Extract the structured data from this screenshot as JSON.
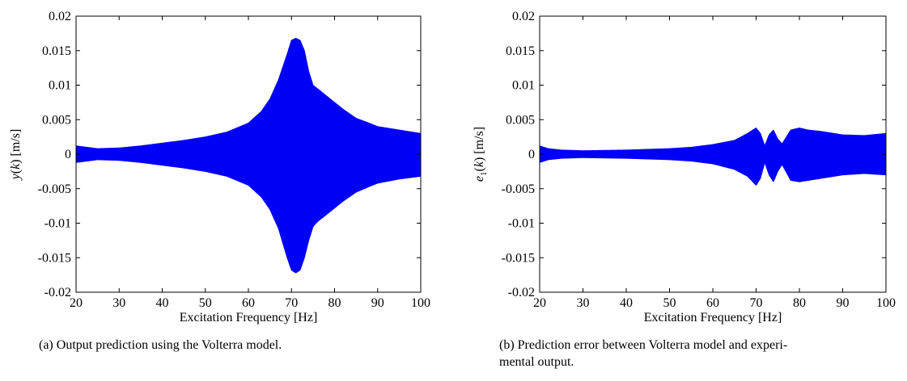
{
  "chart_data": [
    {
      "type": "area",
      "panel": "(a)",
      "xlabel": "Excitation Frequency [Hz]",
      "ylabel_parts": {
        "var": "y",
        "rest": "(",
        "k": "k",
        "close": ") [m/s]"
      },
      "ylabel": "y(k) [m/s]",
      "xlim": [
        20,
        100
      ],
      "ylim": [
        -0.02,
        0.02
      ],
      "xticks": [
        20,
        30,
        40,
        50,
        60,
        70,
        80,
        90,
        100
      ],
      "yticks": [
        -0.02,
        -0.015,
        -0.01,
        -0.005,
        0,
        0.005,
        0.01,
        0.015,
        0.02
      ],
      "ytick_labels": [
        "-0.02",
        "-0.015",
        "-0.01",
        "-0.005",
        "0",
        "0.005",
        "0.01",
        "0.015",
        "0.02"
      ],
      "grid": false,
      "color": "#0000ff",
      "series": [
        {
          "envelope_upper": {
            "x": [
              20,
              25,
              30,
              35,
              40,
              45,
              50,
              55,
              60,
              63,
              65,
              67,
              69,
              70,
              71,
              72,
              73,
              74,
              75,
              76,
              78,
              80,
              82,
              85,
              88,
              90,
              95,
              100
            ],
            "y": [
              0.0012,
              0.0008,
              0.0009,
              0.0012,
              0.0016,
              0.002,
              0.0025,
              0.0032,
              0.0045,
              0.0062,
              0.008,
              0.0108,
              0.0145,
              0.0165,
              0.0168,
              0.0165,
              0.015,
              0.012,
              0.01,
              0.0095,
              0.0085,
              0.0075,
              0.0065,
              0.0052,
              0.0045,
              0.004,
              0.0035,
              0.003
            ]
          },
          "envelope_lower": {
            "x": [
              20,
              25,
              30,
              35,
              40,
              45,
              50,
              55,
              60,
              63,
              65,
              67,
              69,
              70,
              71,
              72,
              73,
              74,
              75,
              76,
              78,
              80,
              82,
              85,
              88,
              90,
              95,
              100
            ],
            "y": [
              -0.0012,
              -0.0008,
              -0.0009,
              -0.0012,
              -0.0016,
              -0.002,
              -0.0025,
              -0.0032,
              -0.0045,
              -0.0062,
              -0.008,
              -0.0108,
              -0.015,
              -0.0168,
              -0.0172,
              -0.0168,
              -0.015,
              -0.0125,
              -0.0105,
              -0.0098,
              -0.0088,
              -0.0078,
              -0.0068,
              -0.0055,
              -0.0047,
              -0.0042,
              -0.0036,
              -0.0032
            ]
          }
        }
      ],
      "caption": "(a) Output prediction using the Volterra model."
    },
    {
      "type": "area",
      "panel": "(b)",
      "xlabel": "Excitation Frequency [Hz]",
      "ylabel_parts": {
        "var": "e",
        "sub": "1",
        "rest": "(",
        "k": "k",
        "close": ") [m/s]"
      },
      "ylabel": "e1(k) [m/s]",
      "xlim": [
        20,
        100
      ],
      "ylim": [
        -0.02,
        0.02
      ],
      "xticks": [
        20,
        30,
        40,
        50,
        60,
        70,
        80,
        90,
        100
      ],
      "yticks": [
        -0.02,
        -0.015,
        -0.01,
        -0.005,
        0,
        0.005,
        0.01,
        0.015,
        0.02
      ],
      "ytick_labels": [
        "-0.02",
        "-0.015",
        "-0.01",
        "-0.005",
        "0",
        "0.005",
        "0.01",
        "0.015",
        "0.02"
      ],
      "grid": false,
      "color": "#0000ff",
      "series": [
        {
          "envelope_upper": {
            "x": [
              20,
              22,
              25,
              30,
              40,
              50,
              55,
              60,
              65,
              68,
              70,
              71,
              72,
              73,
              74,
              75,
              76,
              78,
              80,
              82,
              85,
              88,
              90,
              95,
              100
            ],
            "y": [
              0.0012,
              0.0008,
              0.0006,
              0.0005,
              0.0006,
              0.0008,
              0.001,
              0.0014,
              0.002,
              0.003,
              0.0038,
              0.003,
              0.0012,
              0.0028,
              0.0035,
              0.0022,
              0.0015,
              0.0035,
              0.0038,
              0.0035,
              0.0033,
              0.003,
              0.0028,
              0.0027,
              0.003
            ]
          },
          "envelope_lower": {
            "x": [
              20,
              22,
              25,
              30,
              40,
              50,
              55,
              60,
              65,
              68,
              70,
              71,
              72,
              73,
              74,
              75,
              76,
              78,
              80,
              82,
              85,
              88,
              90,
              95,
              100
            ],
            "y": [
              -0.0012,
              -0.0008,
              -0.0006,
              -0.0005,
              -0.0006,
              -0.0008,
              -0.001,
              -0.0014,
              -0.0022,
              -0.0032,
              -0.0045,
              -0.0035,
              -0.0012,
              -0.003,
              -0.004,
              -0.0025,
              -0.0015,
              -0.0038,
              -0.004,
              -0.0038,
              -0.0035,
              -0.0032,
              -0.003,
              -0.0028,
              -0.003
            ]
          }
        }
      ],
      "caption_lines": [
        "(b) Prediction error between Volterra model and experi-",
        "mental output."
      ],
      "caption": "(b) Prediction error between Volterra model and experimental output."
    }
  ]
}
